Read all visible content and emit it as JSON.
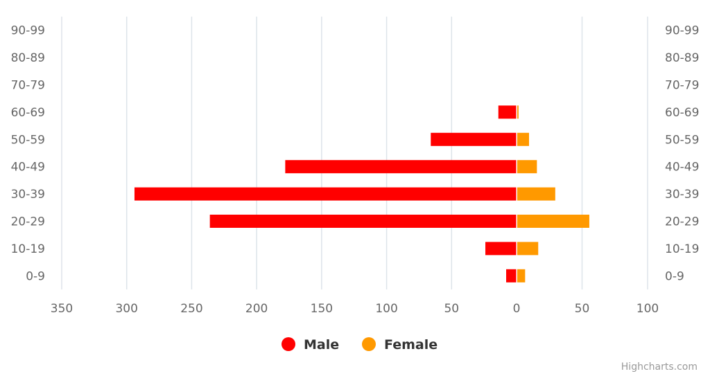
{
  "chart_data": {
    "type": "bar",
    "orientation": "horizontal",
    "stacking": "population-pyramid",
    "categories": [
      "0-9",
      "10-19",
      "20-29",
      "30-39",
      "40-49",
      "50-59",
      "60-69",
      "70-79",
      "80-89",
      "90-99"
    ],
    "series": [
      {
        "name": "Male",
        "color": "#FF0000",
        "values": [
          8,
          24,
          236,
          294,
          178,
          66,
          14,
          0,
          0,
          0
        ]
      },
      {
        "name": "Female",
        "color": "#FF9900",
        "values": [
          6,
          16,
          55,
          29,
          15,
          9,
          1,
          0,
          0,
          0
        ]
      }
    ],
    "male_ticks": [
      350,
      300,
      250,
      200,
      150,
      100,
      50,
      0
    ],
    "female_ticks": [
      0,
      50,
      100
    ],
    "male_range": [
      0,
      350
    ],
    "female_range": [
      0,
      100
    ],
    "category_labels_left": [
      "90-99",
      "80-89",
      "70-79",
      "60-69",
      "50-59",
      "40-49",
      "30-39",
      "20-29",
      "10-19",
      "0-9"
    ],
    "category_labels_right": [
      "90-99",
      "80-89",
      "70-79",
      "60-69",
      "50-59",
      "40-49",
      "30-39",
      "20-29",
      "10-19",
      "0-9"
    ],
    "grid": true,
    "legend_position": "bottom-center"
  },
  "credits": "Highcharts.com",
  "colors": {
    "grid": "#dde4ea",
    "label": "#666666"
  }
}
